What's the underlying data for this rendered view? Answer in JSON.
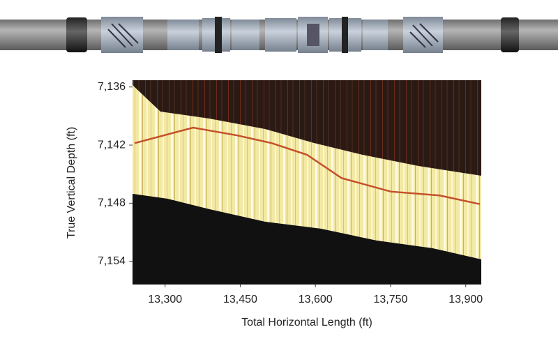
{
  "chart_data": {
    "type": "line",
    "x_label": "Total Horizontal Length (ft)",
    "y_label": "True Vertical Depth (ft)",
    "xlim": [
      13235,
      13931
    ],
    "ylim": [
      7135.3,
      7156.4
    ],
    "y_inverted": true,
    "xticks": [
      {
        "value": 13300,
        "label": "13,300"
      },
      {
        "value": 13450,
        "label": "13,450"
      },
      {
        "value": 13600,
        "label": "13,600"
      },
      {
        "value": 13750,
        "label": "13,750"
      },
      {
        "value": 13900,
        "label": "13,900"
      }
    ],
    "yticks": [
      {
        "value": 7136,
        "label": "7,136"
      },
      {
        "value": 7142,
        "label": "7,142"
      },
      {
        "value": 7148,
        "label": "7,148"
      },
      {
        "value": 7154,
        "label": "7,154"
      }
    ],
    "series": [
      {
        "color": "#c4502a",
        "x": [
          13239,
          13356,
          13444,
          13513,
          13583,
          13652,
          13750,
          13847,
          13928
        ],
        "values": [
          7141.8,
          7140.2,
          7141.0,
          7141.8,
          7143.0,
          7145.4,
          7146.8,
          7147.2,
          7148.1
        ]
      }
    ]
  }
}
